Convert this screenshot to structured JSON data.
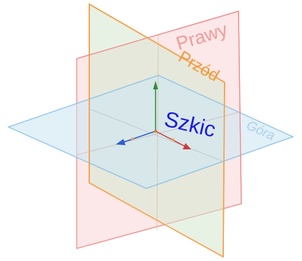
{
  "planes": {
    "right": {
      "label": "Prawy",
      "stroke": "#f08a8a",
      "fill": "#f8c8c8",
      "text_color": "#f49a9a"
    },
    "front": {
      "label": "Przód",
      "stroke": "#f5a04a",
      "fill": "#d7ead3",
      "text_color": "#f29a3c"
    },
    "top": {
      "label": "Góra",
      "stroke": "#8cc3e6",
      "fill": "#cfe6f2",
      "text_color": "#a9d2ec"
    }
  },
  "sketch": {
    "label": "Szkic",
    "color": "#1a1adc"
  },
  "axes": {
    "x": {
      "color": "#d03a3a"
    },
    "y": {
      "color": "#2e8b3a"
    },
    "z": {
      "color": "#2f5fcc"
    }
  }
}
